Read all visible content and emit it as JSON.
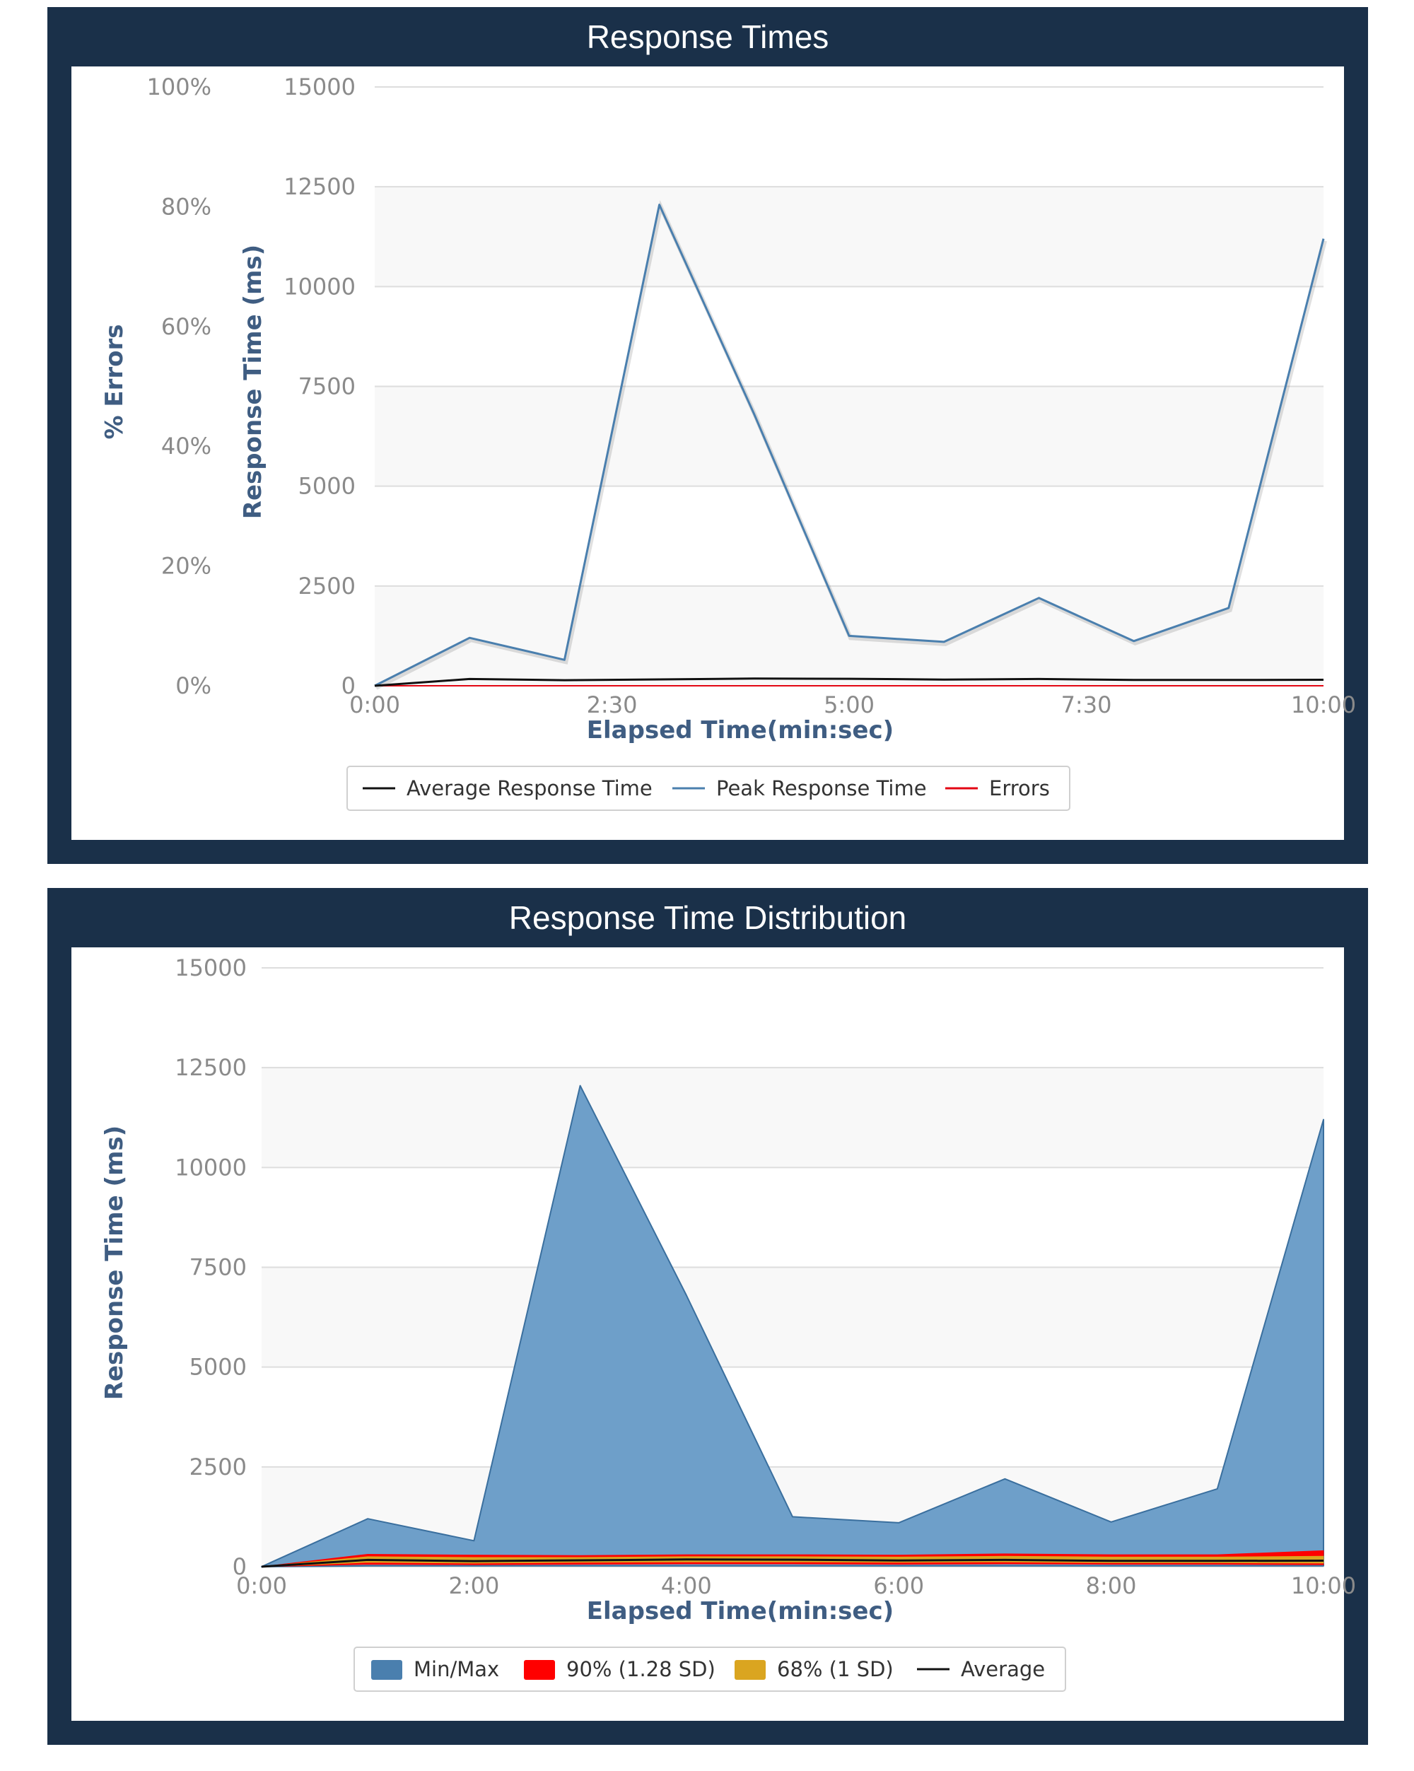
{
  "colors": {
    "panel_bg": "#1a3049",
    "plot_band": "#f8f8f8",
    "grid": "#dddddd",
    "peak": "#4a7fae",
    "average": "#111111",
    "errors": "#e30613",
    "minmax_fill": "#6e9fc9",
    "minmax_stroke": "#3a6f9e",
    "p90": "#ff0000",
    "p68": "#daa520"
  },
  "chart_data": [
    {
      "type": "line",
      "title": "Response Times",
      "xlabel": "Elapsed Time(min:sec)",
      "ylabel": "Response Time (ms)",
      "y2label": "% Errors",
      "x": [
        0,
        60,
        120,
        180,
        240,
        300,
        360,
        420,
        480,
        540,
        600
      ],
      "xlim": [
        0,
        600
      ],
      "xticks": [
        0,
        150,
        300,
        450,
        600
      ],
      "xtick_labels": [
        "0:00",
        "2:30",
        "5:00",
        "7:30",
        "10:00"
      ],
      "ylim": [
        0,
        15000
      ],
      "yticks": [
        0,
        2500,
        5000,
        7500,
        10000,
        12500,
        15000
      ],
      "ytick_labels": [
        "0",
        "2500",
        "5000",
        "7500",
        "10000",
        "12500",
        "15000"
      ],
      "y2lim": [
        0,
        100
      ],
      "y2ticks": [
        0,
        20,
        40,
        60,
        80,
        100
      ],
      "y2tick_labels": [
        "0%",
        "20%",
        "40%",
        "60%",
        "80%",
        "100%"
      ],
      "series": [
        {
          "name": "Average Response Time",
          "values": [
            0,
            170,
            140,
            160,
            180,
            175,
            155,
            170,
            145,
            145,
            150
          ]
        },
        {
          "name": "Peak Response Time",
          "values": [
            0,
            1200,
            650,
            12050,
            6800,
            1250,
            1100,
            2200,
            1120,
            1950,
            11200
          ]
        },
        {
          "name": "Errors",
          "axis": "y2",
          "values": [
            0,
            0,
            0,
            0,
            0,
            0,
            0,
            0,
            0,
            0,
            0
          ]
        }
      ],
      "legend": [
        "Average Response Time",
        "Peak Response Time",
        "Errors"
      ],
      "legend_position": "bottom-center",
      "grid": true
    },
    {
      "type": "area",
      "title": "Response Time Distribution",
      "xlabel": "Elapsed Time(min:sec)",
      "ylabel": "Response Time (ms)",
      "x": [
        0,
        60,
        120,
        180,
        240,
        300,
        360,
        420,
        480,
        540,
        600
      ],
      "xlim": [
        0,
        600
      ],
      "xticks": [
        0,
        120,
        240,
        360,
        480,
        600
      ],
      "xtick_labels": [
        "0:00",
        "2:00",
        "4:00",
        "6:00",
        "8:00",
        "10:00"
      ],
      "ylim": [
        0,
        15000
      ],
      "yticks": [
        0,
        2500,
        5000,
        7500,
        10000,
        12500,
        15000
      ],
      "ytick_labels": [
        "0",
        "2500",
        "5000",
        "7500",
        "10000",
        "12500",
        "15000"
      ],
      "series": [
        {
          "name": "Min/Max",
          "low": [
            0,
            20,
            20,
            20,
            20,
            20,
            20,
            20,
            20,
            20,
            20
          ],
          "high": [
            0,
            1200,
            650,
            12050,
            6800,
            1250,
            1100,
            2200,
            1120,
            1950,
            11200
          ]
        },
        {
          "name": "90% (1.28 SD)",
          "low": [
            0,
            60,
            50,
            60,
            70,
            70,
            60,
            70,
            60,
            60,
            50
          ],
          "high": [
            0,
            310,
            290,
            280,
            300,
            300,
            290,
            320,
            300,
            300,
            400
          ]
        },
        {
          "name": "68% (1 SD)",
          "low": [
            0,
            110,
            90,
            110,
            120,
            120,
            110,
            120,
            100,
            100,
            90
          ],
          "high": [
            0,
            250,
            230,
            230,
            250,
            250,
            240,
            260,
            240,
            240,
            260
          ]
        },
        {
          "name": "Average",
          "values": [
            0,
            170,
            140,
            160,
            180,
            175,
            155,
            170,
            145,
            145,
            150
          ]
        }
      ],
      "legend": [
        "Min/Max",
        "90% (1.28 SD)",
        "68% (1 SD)",
        "Average"
      ],
      "legend_position": "bottom-center",
      "grid": true
    }
  ]
}
